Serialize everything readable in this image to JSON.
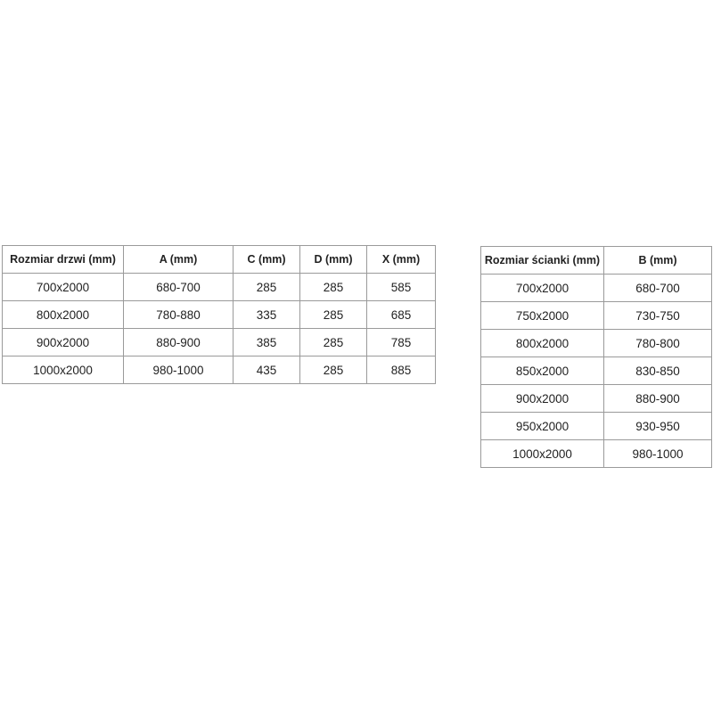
{
  "door_table": {
    "headers": [
      "Rozmiar drzwi (mm)",
      "A (mm)",
      "C (mm)",
      "D (mm)",
      "X (mm)"
    ],
    "rows": [
      [
        "700x2000",
        "680-700",
        "285",
        "285",
        "585"
      ],
      [
        "800x2000",
        "780-880",
        "335",
        "285",
        "685"
      ],
      [
        "900x2000",
        "880-900",
        "385",
        "285",
        "785"
      ],
      [
        "1000x2000",
        "980-1000",
        "435",
        "285",
        "885"
      ]
    ]
  },
  "wall_table": {
    "headers": [
      "Rozmiar ścianki (mm)",
      "B (mm)"
    ],
    "rows": [
      [
        "700x2000",
        "680-700"
      ],
      [
        "750x2000",
        "730-750"
      ],
      [
        "800x2000",
        "780-800"
      ],
      [
        "850x2000",
        "830-850"
      ],
      [
        "900x2000",
        "880-900"
      ],
      [
        "950x2000",
        "930-950"
      ],
      [
        "1000x2000",
        "980-1000"
      ]
    ]
  }
}
